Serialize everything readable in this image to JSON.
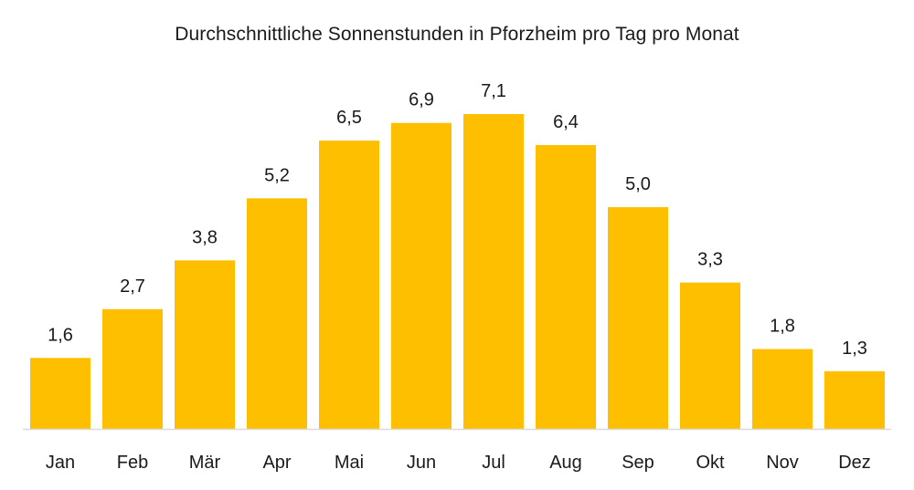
{
  "chart_data": {
    "type": "bar",
    "title": "Durchschnittliche Sonnenstunden in Pforzheim pro Tag pro Monat",
    "categories": [
      "Jan",
      "Feb",
      "Mär",
      "Apr",
      "Mai",
      "Jun",
      "Jul",
      "Aug",
      "Sep",
      "Okt",
      "Nov",
      "Dez"
    ],
    "values": [
      1.6,
      2.7,
      3.8,
      5.2,
      6.5,
      6.9,
      7.1,
      6.4,
      5.0,
      3.3,
      1.8,
      1.3
    ],
    "value_labels": [
      "1,6",
      "2,7",
      "3,8",
      "5,2",
      "6,5",
      "6,9",
      "7,1",
      "6,4",
      "5,0",
      "3,3",
      "1,8",
      "1,3"
    ],
    "xlabel": "",
    "ylabel": "",
    "ylim": [
      0,
      7.1
    ],
    "grid": false,
    "bar_color": "#FDBF00",
    "axis_color": "#D9D9D9"
  }
}
